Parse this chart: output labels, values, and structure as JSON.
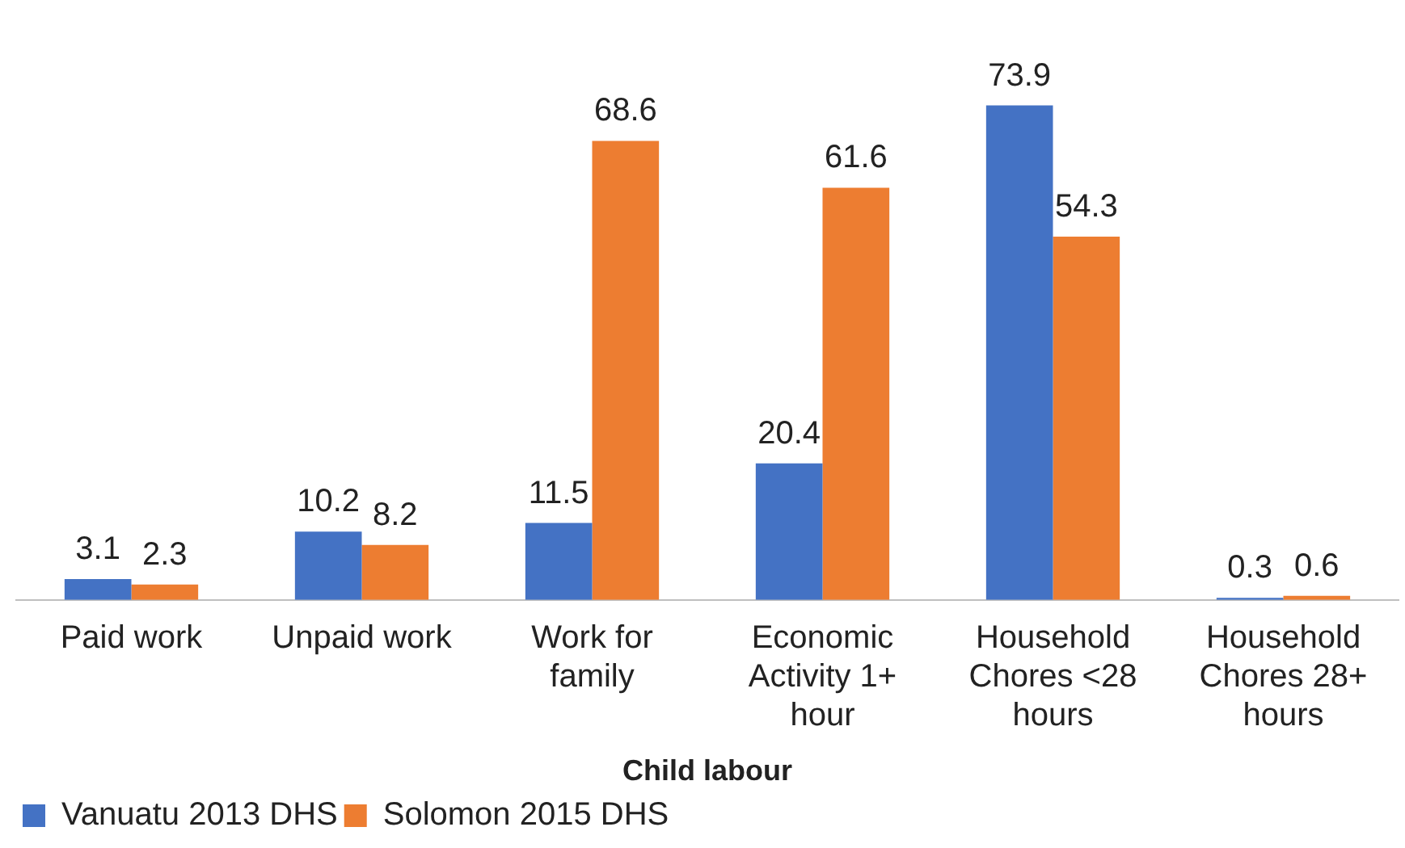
{
  "chart_data": {
    "type": "bar",
    "xlabel": "Child labour",
    "categories": [
      "Paid work",
      "Unpaid work",
      "Work for family",
      "Economic Activity 1+ hour",
      "Household Chores <28 hours",
      "Household Chores 28+ hours"
    ],
    "series": [
      {
        "name": "Vanuatu 2013 DHS",
        "color": "#4472c4",
        "values": [
          3.1,
          10.2,
          11.5,
          20.4,
          73.9,
          0.3
        ]
      },
      {
        "name": "Solomon 2015 DHS",
        "color": "#ed7d31",
        "values": [
          2.3,
          8.2,
          68.6,
          61.6,
          54.3,
          0.6
        ]
      }
    ],
    "data_labels": true,
    "legend": "bottom left",
    "grid": false,
    "tick_labels": "x"
  }
}
